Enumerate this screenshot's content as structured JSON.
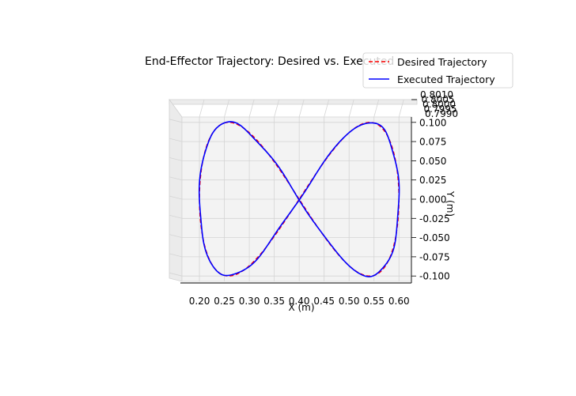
{
  "chart_data": {
    "type": "line",
    "title": "End-Effector Trajectory: Desired vs. Executed",
    "xlabel": "X (m)",
    "ylabel": "Y (m)",
    "xlim": [
      0.165,
      0.625
    ],
    "ylim": [
      -0.107,
      0.107
    ],
    "xticks": [
      "0.20",
      "0.25",
      "0.30",
      "0.35",
      "0.40",
      "0.45",
      "0.50",
      "0.55",
      "0.60"
    ],
    "yticks": [
      "0.100",
      "0.075",
      "0.050",
      "0.025",
      "0.000",
      "-0.025",
      "-0.050",
      "-0.075",
      "-0.100"
    ],
    "zticks": [
      "0.8010",
      "0.8005",
      "0.8000",
      "0.7995",
      "0.7990"
    ],
    "grid": true,
    "legend_position": "top-right",
    "series": [
      {
        "name": "Desired Trajectory",
        "color": "#ff0000",
        "style": "dashed",
        "shape": "figure-eight",
        "center_x": 0.4,
        "center_y": 0.0,
        "amplitude_x": 0.2,
        "amplitude_y": 0.1,
        "z": 0.8
      },
      {
        "name": "Executed Trajectory",
        "color": "#0000ff",
        "style": "solid",
        "shape": "figure-eight",
        "center_x": 0.4,
        "center_y": 0.0,
        "amplitude_x": 0.2,
        "amplitude_y": 0.1,
        "z": 0.8
      }
    ]
  }
}
